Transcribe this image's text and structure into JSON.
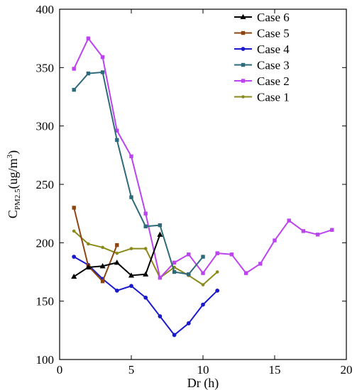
{
  "chart_data": {
    "type": "line",
    "xlabel": "Dr (h)",
    "ylabel": {
      "main": "C",
      "sub": "PM2.5",
      "unit": "(ug/m",
      "sup": "3",
      "close": ")"
    },
    "xlim": [
      0,
      20
    ],
    "ylim": [
      100,
      400
    ],
    "x_ticks": [
      0,
      5,
      10,
      15,
      20
    ],
    "y_ticks": [
      100,
      150,
      200,
      250,
      300,
      350,
      400
    ],
    "grid": false,
    "legend_position": "top-right",
    "series": [
      {
        "name": "Case 6",
        "color": "#000000",
        "marker": "triangle",
        "x": [
          1,
          2,
          3,
          4,
          5,
          6,
          7
        ],
        "y": [
          171,
          179,
          180,
          183,
          172,
          173,
          207
        ]
      },
      {
        "name": "Case 5",
        "color": "#8B4513",
        "marker": "square",
        "x": [
          1,
          2,
          3,
          4
        ],
        "y": [
          230,
          180,
          167,
          198
        ]
      },
      {
        "name": "Case 4",
        "color": "#1a1acc",
        "marker": "circle",
        "x": [
          1,
          2,
          3,
          4,
          5,
          6,
          7,
          8,
          9,
          10,
          11
        ],
        "y": [
          188,
          181,
          169,
          159,
          163,
          153,
          137,
          121,
          131,
          147,
          159
        ]
      },
      {
        "name": "Case 3",
        "color": "#2f6a7a",
        "marker": "square",
        "x": [
          1,
          2,
          3,
          4,
          5,
          6,
          7,
          8,
          9,
          10
        ],
        "y": [
          331,
          345,
          346,
          288,
          239,
          214,
          215,
          175,
          173,
          188
        ]
      },
      {
        "name": "Case 2",
        "color": "#bb44ee",
        "marker": "square",
        "x": [
          1,
          2,
          3,
          4,
          5,
          6,
          7,
          8,
          9,
          10,
          11,
          12,
          13,
          14,
          15,
          16,
          17,
          18,
          19
        ],
        "y": [
          349,
          375,
          359,
          296,
          274,
          225,
          170,
          183,
          190,
          174,
          191,
          190,
          174,
          182,
          202,
          219,
          210,
          207,
          211
        ]
      },
      {
        "name": "Case 1",
        "color": "#8a8a1a",
        "marker": "circle-small",
        "x": [
          1,
          2,
          3,
          4,
          5,
          6,
          7,
          8,
          9,
          10,
          11
        ],
        "y": [
          210,
          199,
          196,
          191,
          195,
          195,
          170,
          179,
          172,
          164,
          175
        ]
      }
    ]
  }
}
